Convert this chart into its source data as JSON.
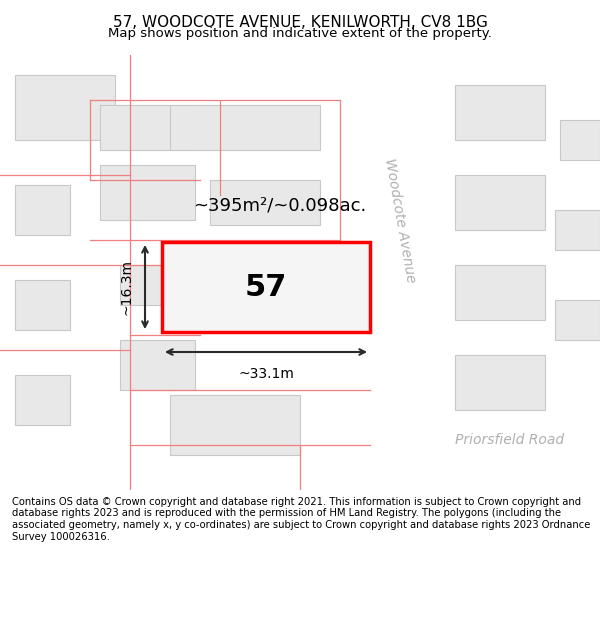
{
  "title": "57, WOODCOTE AVENUE, KENILWORTH, CV8 1BG",
  "subtitle": "Map shows position and indicative extent of the property.",
  "footer": "Contains OS data © Crown copyright and database right 2021. This information is subject to Crown copyright and database rights 2023 and is reproduced with the permission of HM Land Registry. The polygons (including the associated geometry, namely x, y co-ordinates) are subject to Crown copyright and database rights 2023 Ordnance Survey 100026316.",
  "background_color": "#f5f5f5",
  "map_bg": "#f0f0f0",
  "road_color": "#ffffff",
  "building_fill": "#e0e0e0",
  "building_stroke": "#cccccc",
  "parcel_stroke": "#f08080",
  "highlight_stroke": "#ff0000",
  "highlight_fill": "#f5f5f5",
  "dim_color": "#333333",
  "road_label_color": "#aaaaaa",
  "area_text": "~395m²/~0.098ac.",
  "number_text": "57",
  "dim_width": "~33.1m",
  "dim_height": "~16.3m",
  "street_name_1": "Woodcote Avenue",
  "street_name_2": "Priorsfield Road"
}
